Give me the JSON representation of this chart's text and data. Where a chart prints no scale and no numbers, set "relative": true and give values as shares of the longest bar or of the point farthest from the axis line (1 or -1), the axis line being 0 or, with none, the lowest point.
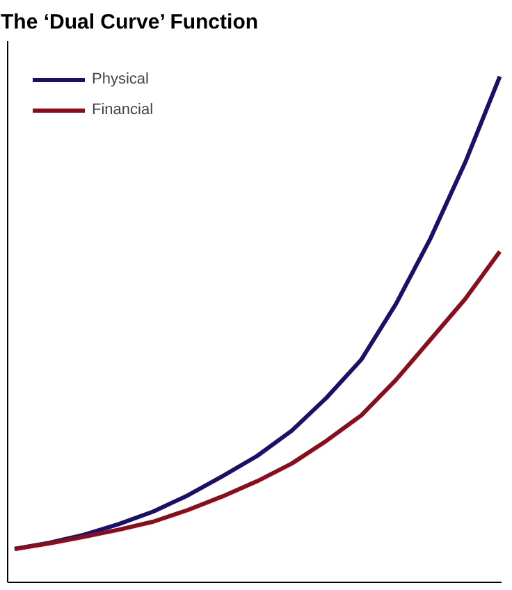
{
  "chart_data": {
    "type": "line",
    "title": "The ‘Dual Curve’ Function",
    "relative": true,
    "categories": [
      null,
      null,
      null,
      null,
      null,
      null,
      null,
      null,
      null,
      null,
      null,
      null,
      null,
      null,
      null
    ],
    "series": [
      {
        "name": "Physical",
        "color": "#1c0f6b",
        "values": [
          0.066,
          0.078,
          0.094,
          0.115,
          0.14,
          0.172,
          0.21,
          0.25,
          0.3,
          0.365,
          0.44,
          0.55,
          0.68,
          0.83,
          1.0
        ]
      },
      {
        "name": "Financial",
        "color": "#8b0d1c",
        "values": [
          0.066,
          0.077,
          0.09,
          0.104,
          0.12,
          0.143,
          0.17,
          0.2,
          0.235,
          0.28,
          0.33,
          0.4,
          0.48,
          0.56,
          0.654
        ]
      }
    ],
    "legend": "top left",
    "line_style": "solid",
    "marker": "none"
  }
}
